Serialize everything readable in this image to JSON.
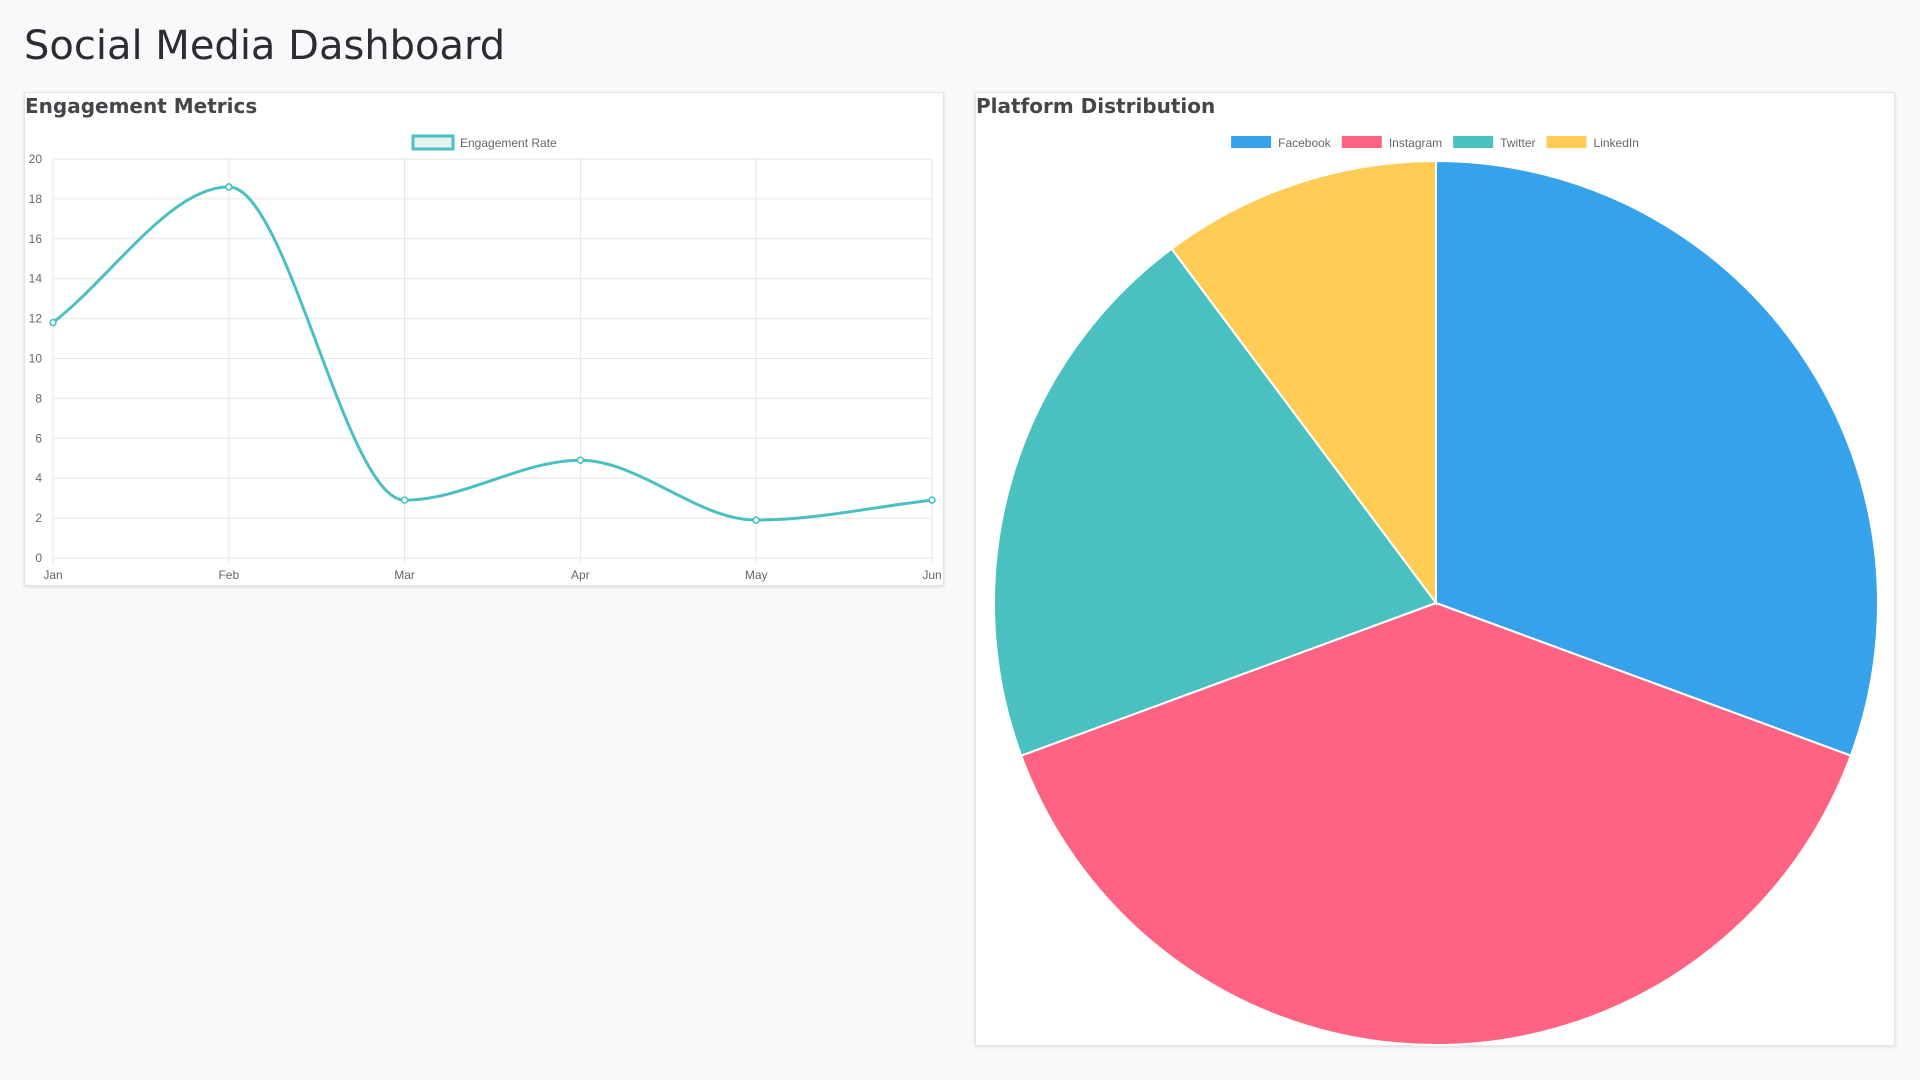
{
  "page": {
    "title": "Social Media Dashboard"
  },
  "colors": {
    "line": "#4bc0c0",
    "line_fill": "#e6f3f3",
    "grid": "#e6e6e6",
    "tick": "#666666"
  },
  "engagement": {
    "title": "Engagement Metrics",
    "chart_data": {
      "type": "line",
      "categories": [
        "Jan",
        "Feb",
        "Mar",
        "Apr",
        "May",
        "Jun"
      ],
      "series": [
        {
          "name": "Engagement Rate",
          "values": [
            11.8,
            18.6,
            2.9,
            4.9,
            1.9,
            2.9
          ],
          "color": "#4bc0c0"
        }
      ],
      "ylim": [
        0,
        20
      ],
      "yticks": [
        0,
        2,
        4,
        6,
        8,
        10,
        12,
        14,
        16,
        18,
        20
      ],
      "grid": true,
      "legend": "top-center"
    }
  },
  "distribution": {
    "title": "Platform Distribution",
    "chart_data": {
      "type": "pie",
      "categories": [
        "Facebook",
        "Instagram",
        "Twitter",
        "LinkedIn"
      ],
      "values": [
        30,
        38,
        20,
        10
      ],
      "colors": [
        "#36a2eb",
        "#ff6384",
        "#4bc0c0",
        "#ffcd56"
      ],
      "legend": "top-center"
    }
  }
}
